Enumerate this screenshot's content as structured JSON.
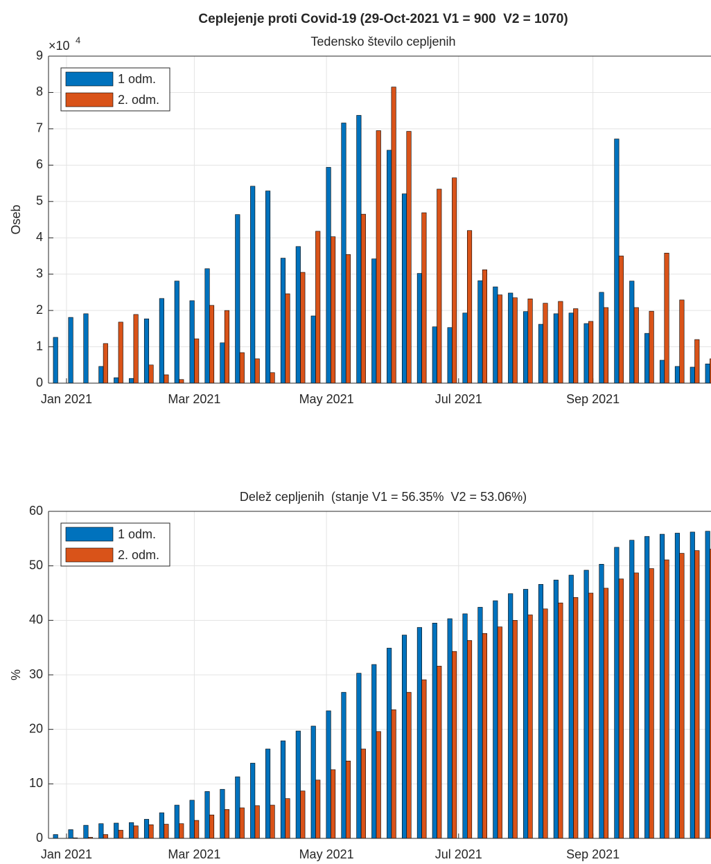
{
  "title": "Ceplejenje proti Covid-19 (29-Oct-2021 V1 = 900  V2 = 1070)",
  "chart_data": [
    {
      "type": "bar",
      "title": "Tedensko število cepljenih",
      "y_label": "Oseb",
      "y_multiplier": {
        "base": "×10",
        "exponent": "4"
      },
      "x": [
        -4,
        3,
        10,
        17,
        24,
        31,
        38,
        45,
        52,
        59,
        66,
        73,
        80,
        87,
        94,
        101,
        108,
        115,
        122,
        129,
        136,
        143,
        150,
        157,
        164,
        171,
        178,
        185,
        192,
        199,
        206,
        213,
        220,
        227,
        234,
        241,
        248,
        255,
        262,
        269,
        276,
        283,
        290,
        297
      ],
      "xlim": [
        -8.3,
        297.5
      ],
      "xticks": [
        {
          "value": 0,
          "label": "Jan 2021"
        },
        {
          "value": 59,
          "label": "Mar 2021"
        },
        {
          "value": 120,
          "label": "May 2021"
        },
        {
          "value": 181,
          "label": "Jul 2021"
        },
        {
          "value": 243,
          "label": "Sep 2021"
        }
      ],
      "ylim": [
        0,
        9
      ],
      "yticks": [
        0,
        1,
        2,
        3,
        4,
        5,
        6,
        7,
        8,
        9
      ],
      "grid": true,
      "legend": "upper-left",
      "series": [
        {
          "name": "1 odm.",
          "color": "#0072bd",
          "values": [
            1.26,
            1.81,
            1.91,
            0.46,
            0.15,
            0.13,
            1.77,
            2.33,
            2.81,
            2.27,
            3.15,
            1.11,
            4.64,
            5.42,
            5.29,
            3.44,
            3.76,
            1.85,
            5.94,
            7.16,
            7.37,
            3.42,
            6.41,
            5.21,
            3.02,
            1.55,
            1.53,
            1.93,
            2.82,
            2.65,
            2.48,
            1.97,
            1.62,
            1.91,
            1.93,
            1.64,
            2.5,
            6.72,
            2.81,
            1.37,
            0.63,
            0.46,
            0.44,
            0.53
          ]
        },
        {
          "name": "2. odm.",
          "color": "#d95319",
          "values": [
            0,
            0,
            0,
            1.09,
            1.68,
            1.89,
            0.5,
            0.23,
            0.1,
            1.22,
            2.14,
            2.0,
            0.84,
            0.67,
            0.29,
            2.46,
            3.05,
            4.18,
            4.03,
            3.54,
            4.65,
            6.95,
            8.15,
            6.93,
            4.69,
            5.34,
            5.65,
            4.2,
            3.12,
            2.43,
            2.35,
            2.32,
            2.2,
            2.25,
            2.05,
            1.7,
            2.08,
            3.5,
            2.08,
            1.98,
            3.58,
            2.29,
            1.2,
            0.67
          ]
        }
      ]
    },
    {
      "type": "bar",
      "title": "Delež cepljenih  (stanje V1 = 56.35%  V2 = 53.06%)",
      "y_label": "%",
      "x": [
        -4,
        3,
        10,
        17,
        24,
        31,
        38,
        45,
        52,
        59,
        66,
        73,
        80,
        87,
        94,
        101,
        108,
        115,
        122,
        129,
        136,
        143,
        150,
        157,
        164,
        171,
        178,
        185,
        192,
        199,
        206,
        213,
        220,
        227,
        234,
        241,
        248,
        255,
        262,
        269,
        276,
        283,
        290,
        297
      ],
      "xlim": [
        -8.3,
        297.5
      ],
      "xticks": [
        {
          "value": 0,
          "label": "Jan 2021"
        },
        {
          "value": 59,
          "label": "Mar 2021"
        },
        {
          "value": 120,
          "label": "May 2021"
        },
        {
          "value": 181,
          "label": "Jul 2021"
        },
        {
          "value": 243,
          "label": "Sep 2021"
        }
      ],
      "ylim": [
        0,
        60
      ],
      "yticks": [
        0,
        10,
        20,
        30,
        40,
        50,
        60
      ],
      "grid": true,
      "legend": "upper-left",
      "series": [
        {
          "name": "1 odm.",
          "color": "#0072bd",
          "values": [
            0.7,
            1.6,
            2.4,
            2.7,
            2.8,
            2.9,
            3.5,
            4.7,
            6.1,
            7.0,
            8.6,
            9.0,
            11.3,
            13.8,
            16.4,
            17.9,
            19.7,
            20.6,
            23.4,
            26.8,
            30.3,
            31.9,
            34.9,
            37.3,
            38.7,
            39.5,
            40.3,
            41.2,
            42.4,
            43.6,
            44.9,
            45.7,
            46.6,
            47.4,
            48.3,
            49.2,
            50.3,
            53.4,
            54.7,
            55.4,
            55.8,
            56.0,
            56.2,
            56.35
          ]
        },
        {
          "name": "2. odm.",
          "color": "#d95319",
          "values": [
            0,
            0.1,
            0.2,
            0.7,
            1.5,
            2.3,
            2.5,
            2.6,
            2.7,
            3.3,
            4.3,
            5.3,
            5.6,
            6.0,
            6.1,
            7.3,
            8.7,
            10.7,
            12.6,
            14.2,
            16.4,
            19.6,
            23.6,
            26.8,
            29.1,
            31.6,
            34.3,
            36.3,
            37.6,
            38.8,
            40.0,
            41.0,
            42.1,
            43.2,
            44.2,
            45.0,
            45.9,
            47.6,
            48.7,
            49.5,
            51.1,
            52.3,
            52.8,
            53.06
          ]
        }
      ]
    }
  ]
}
